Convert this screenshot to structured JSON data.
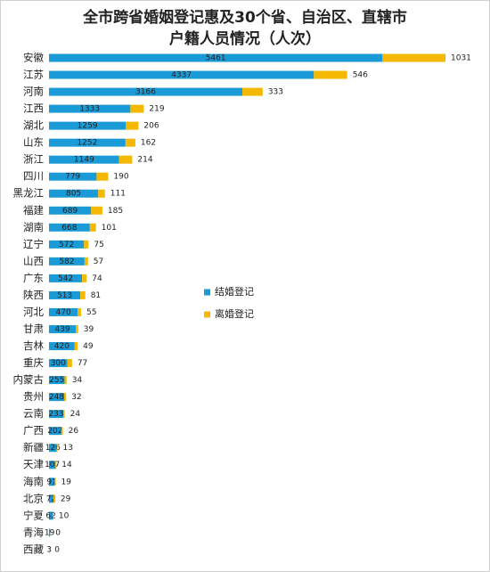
{
  "chart_data": {
    "type": "stacked-bar",
    "orientation": "horizontal",
    "title": [
      "全市跨省婚姻登记惠及30个省、自治区、直辖市",
      "户籍人员情况（人次）"
    ],
    "categories": [
      "安徽",
      "江苏",
      "河南",
      "江西",
      "湖北",
      "山东",
      "浙江",
      "四川",
      "黑龙江",
      "福建",
      "湖南",
      "辽宁",
      "山西",
      "广东",
      "陕西",
      "河北",
      "甘肃",
      "吉林",
      "重庆",
      "内蒙古",
      "贵州",
      "云南",
      "广西",
      "新疆",
      "天津",
      "海南",
      "北京",
      "宁夏",
      "青海",
      "西藏"
    ],
    "series": [
      {
        "name": "结婚登记",
        "color": "#1a9ad6",
        "values": [
          5461,
          4337,
          3166,
          1333,
          1259,
          1252,
          1149,
          779,
          805,
          689,
          668,
          572,
          582,
          542,
          513,
          470,
          439,
          420,
          300,
          255,
          248,
          233,
          202,
          126,
          107,
          91,
          72,
          62,
          19,
          3
        ]
      },
      {
        "name": "离婚登记",
        "color": "#f5b800",
        "values": [
          1031,
          546,
          333,
          219,
          206,
          162,
          214,
          190,
          111,
          185,
          101,
          75,
          57,
          74,
          81,
          55,
          39,
          49,
          77,
          34,
          32,
          24,
          26,
          13,
          14,
          19,
          29,
          10,
          0,
          0
        ]
      }
    ],
    "legend": "center"
  }
}
